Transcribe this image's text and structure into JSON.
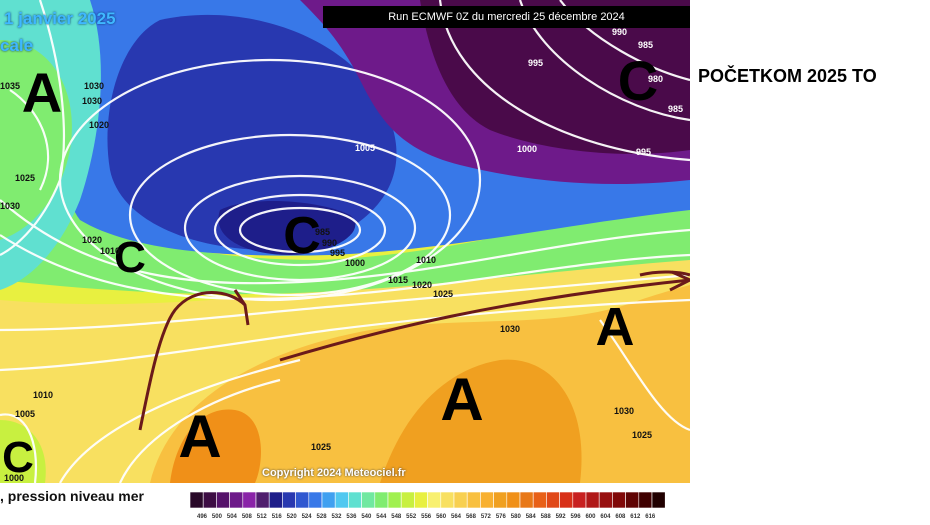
{
  "map": {
    "title_date": "1 janvier 2025",
    "title_sub": "cale",
    "run_banner": "Run ECMWF 0Z du mercredi 25 décembre 2024",
    "copyright": "Copyright 2024 Meteociel.fr",
    "caption": ", pression niveau mer",
    "pressure_systems": [
      {
        "label": "A",
        "type": "high"
      },
      {
        "label": "C",
        "type": "low"
      },
      {
        "label": "C",
        "type": "low"
      },
      {
        "label": "C",
        "type": "low"
      },
      {
        "label": "C",
        "type": "low"
      },
      {
        "label": "A",
        "type": "high"
      },
      {
        "label": "A",
        "type": "high"
      },
      {
        "label": "A",
        "type": "high"
      }
    ],
    "isobar_labels": [
      "1035",
      "1030",
      "1030",
      "1020",
      "1025",
      "1030",
      "1020",
      "1010",
      "985",
      "990",
      "995",
      "1000",
      "1005",
      "1010",
      "1015",
      "1020",
      "1025",
      "1030",
      "1010",
      "1005",
      "1000",
      "990",
      "985",
      "980",
      "985",
      "995",
      "995",
      "1000",
      "1030",
      "1025",
      "1025"
    ],
    "colors": {
      "deep_low": "#4a0a4a",
      "low": "#2a3ab0",
      "mid": "#5ee05e",
      "high": "#f0a020",
      "flow_arrow": "#6b1a1a",
      "isobar": "#ffffff"
    }
  },
  "headline": "POČETKOM 2025 TO",
  "legend": {
    "colors": [
      "#2a0a2a",
      "#3d0d44",
      "#55126a",
      "#6e1a8a",
      "#8a23a8",
      "#501e6e",
      "#1e1e8a",
      "#2838b0",
      "#3058d0",
      "#3878e8",
      "#40a0f0",
      "#50c8f0",
      "#60e0d0",
      "#70e8a0",
      "#80ec70",
      "#a0f050",
      "#c8f040",
      "#e8f040",
      "#f8f070",
      "#f8e060",
      "#f8d050",
      "#f8c040",
      "#f8b030",
      "#f0a020",
      "#f09018",
      "#e87818",
      "#e86018",
      "#e04818",
      "#d83018",
      "#c82020",
      "#b01818",
      "#981010",
      "#800808",
      "#600404",
      "#400000",
      "#200000"
    ],
    "labels": [
      "496",
      "500",
      "504",
      "508",
      "512",
      "516",
      "520",
      "524",
      "528",
      "532",
      "536",
      "540",
      "544",
      "548",
      "552",
      "556",
      "560",
      "564",
      "568",
      "572",
      "576",
      "580",
      "584",
      "588",
      "592",
      "596",
      "600",
      "604",
      "608",
      "612",
      "616"
    ]
  }
}
